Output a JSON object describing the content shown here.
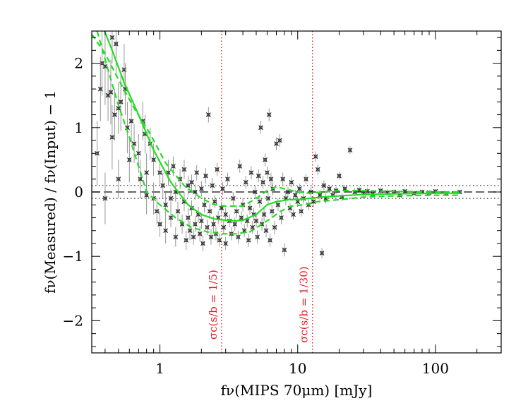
{
  "chart_data": {
    "type": "scatter",
    "title": "",
    "xlabel": "fν(MIPS 70μm) [mJy]",
    "ylabel": "fν(Measured) / fν(Input) − 1",
    "xscale": "log",
    "xlim": [
      0.32,
      300
    ],
    "ylim": [
      -2.5,
      2.5
    ],
    "x_ticks": [
      1,
      10,
      100
    ],
    "x_tick_labels": [
      "1",
      "10",
      "100"
    ],
    "y_ticks": [
      -2,
      -1,
      0,
      1,
      2
    ],
    "y_tick_labels": [
      "−2",
      "−1",
      "0",
      "1",
      "2"
    ],
    "grid": false,
    "colors": {
      "points": "#2b2b2b",
      "fit": "#22dd22",
      "vlines": "#e41a1c",
      "reference": "#333333"
    },
    "reference_lines": [
      {
        "y": 0,
        "style": "dashed"
      },
      {
        "y": 0.1,
        "style": "dotted"
      },
      {
        "y": -0.1,
        "style": "dotted"
      }
    ],
    "vertical_lines": [
      {
        "x": 2.8,
        "label": "σc(s/b = 1/5)"
      },
      {
        "x": 12.8,
        "label": "σc(s/b = 1/30)"
      }
    ],
    "series": [
      {
        "kind": "fit_median",
        "style": "solid",
        "x": [
          0.38,
          0.45,
          0.55,
          0.7,
          0.9,
          1.2,
          1.6,
          2.0,
          2.5,
          3.0,
          3.5,
          4.0,
          5.0,
          6.0,
          7.0,
          8.5,
          10,
          12,
          15,
          20,
          30,
          50,
          100,
          150
        ],
        "y": [
          2.6,
          2.2,
          1.7,
          1.2,
          0.65,
          0.15,
          -0.2,
          -0.35,
          -0.42,
          -0.44,
          -0.45,
          -0.44,
          -0.35,
          -0.2,
          -0.15,
          -0.12,
          -0.12,
          -0.1,
          -0.08,
          -0.06,
          -0.04,
          -0.03,
          -0.02,
          -0.02
        ]
      },
      {
        "kind": "fit_upper",
        "style": "dashed",
        "x": [
          0.32,
          0.4,
          0.5,
          0.65,
          0.85,
          1.1,
          1.5,
          2.0,
          2.5,
          3.0,
          4.0,
          5.0,
          6.0,
          7.0,
          8.0,
          10,
          12,
          15,
          20,
          30,
          50,
          100,
          150
        ],
        "y": [
          2.45,
          2.15,
          1.75,
          1.3,
          0.9,
          0.45,
          0.1,
          -0.1,
          -0.2,
          -0.22,
          -0.22,
          -0.1,
          0.02,
          0.08,
          0.05,
          0.0,
          -0.02,
          0.0,
          0.02,
          0.02,
          0.01,
          0.0,
          0.0
        ]
      },
      {
        "kind": "fit_lower",
        "style": "dashed",
        "x": [
          0.35,
          0.42,
          0.5,
          0.6,
          0.7,
          0.8,
          1.0,
          1.3,
          1.7,
          2.2,
          2.8,
          3.5,
          4.5,
          5.5,
          6.5,
          7.5,
          9,
          11,
          14,
          20,
          30,
          50,
          100,
          150
        ],
        "y": [
          2.5,
          1.9,
          1.35,
          0.85,
          0.4,
          0.0,
          -0.2,
          -0.4,
          -0.55,
          -0.62,
          -0.65,
          -0.65,
          -0.62,
          -0.5,
          -0.4,
          -0.3,
          -0.22,
          -0.2,
          -0.15,
          -0.12,
          -0.08,
          -0.06,
          -0.05,
          -0.05
        ]
      },
      {
        "kind": "measurements",
        "points": [
          [
            0.38,
            2.0,
            0.5
          ],
          [
            0.4,
            1.95,
            0.6
          ],
          [
            0.42,
            1.5,
            0.4
          ],
          [
            0.44,
            1.55,
            0.5
          ],
          [
            0.45,
            0.85,
            0.5
          ],
          [
            0.47,
            1.2,
            0.4
          ],
          [
            0.48,
            2.3,
            0.5
          ],
          [
            0.5,
            1.3,
            0.4
          ],
          [
            0.52,
            1.4,
            0.45
          ],
          [
            0.55,
            1.9,
            0.4
          ],
          [
            0.56,
            1.6,
            0.4
          ],
          [
            0.58,
            1.0,
            0.4
          ],
          [
            0.6,
            0.5,
            0.35
          ],
          [
            0.62,
            1.1,
            0.35
          ],
          [
            0.65,
            0.75,
            0.3
          ],
          [
            0.35,
            0.6,
            0.5
          ],
          [
            0.37,
            1.6,
            0.5
          ],
          [
            0.4,
            -0.1,
            0.4
          ],
          [
            0.45,
            2.4,
            0.4
          ],
          [
            0.5,
            0.2,
            0.3
          ],
          [
            0.7,
            0.6,
            0.3
          ],
          [
            0.72,
            0.2,
            0.3
          ],
          [
            0.75,
            1.1,
            0.3
          ],
          [
            0.78,
            0.9,
            0.3
          ],
          [
            0.8,
            0.3,
            0.3
          ],
          [
            0.8,
            -0.05,
            0.3
          ],
          [
            0.85,
            0.75,
            0.25
          ],
          [
            0.9,
            -0.1,
            0.25
          ],
          [
            0.9,
            0.5,
            0.25
          ],
          [
            0.95,
            -0.3,
            0.2
          ],
          [
            1.0,
            0.3,
            0.2
          ],
          [
            1.0,
            -0.5,
            0.2
          ],
          [
            1.05,
            0.1,
            0.2
          ],
          [
            1.1,
            -0.2,
            0.2
          ],
          [
            1.1,
            -0.6,
            0.2
          ],
          [
            1.15,
            0.3,
            0.2
          ],
          [
            1.2,
            -0.1,
            0.15
          ],
          [
            1.2,
            -0.4,
            0.15
          ],
          [
            1.25,
            0.4,
            0.15
          ],
          [
            1.3,
            -0.7,
            0.15
          ],
          [
            1.3,
            0.0,
            0.15
          ],
          [
            1.35,
            -0.3,
            0.15
          ],
          [
            1.4,
            0.2,
            0.15
          ],
          [
            1.45,
            -0.5,
            0.15
          ],
          [
            1.5,
            0.35,
            0.15
          ],
          [
            1.5,
            -0.15,
            0.15
          ],
          [
            1.55,
            -0.75,
            0.15
          ],
          [
            1.6,
            0.1,
            0.15
          ],
          [
            1.6,
            -0.4,
            0.15
          ],
          [
            1.65,
            -0.6,
            0.15
          ],
          [
            1.7,
            0.15,
            0.12
          ],
          [
            1.7,
            -0.25,
            0.12
          ],
          [
            1.75,
            -0.7,
            0.12
          ],
          [
            1.8,
            0.0,
            0.12
          ],
          [
            1.8,
            -0.5,
            0.12
          ],
          [
            1.85,
            0.3,
            0.12
          ],
          [
            1.9,
            -0.35,
            0.12
          ],
          [
            1.95,
            -0.65,
            0.12
          ],
          [
            2.0,
            0.05,
            0.12
          ],
          [
            2.0,
            -0.45,
            0.12
          ],
          [
            2.05,
            -0.8,
            0.12
          ],
          [
            2.1,
            -0.2,
            0.12
          ],
          [
            2.15,
            0.25,
            0.12
          ],
          [
            2.2,
            -0.55,
            0.12
          ],
          [
            2.25,
            1.2,
            0.12
          ],
          [
            2.3,
            -0.3,
            0.12
          ],
          [
            2.35,
            -0.7,
            0.12
          ],
          [
            2.4,
            0.1,
            0.12
          ],
          [
            2.45,
            -0.5,
            0.12
          ],
          [
            2.5,
            -0.15,
            0.1
          ],
          [
            2.55,
            -0.65,
            0.1
          ],
          [
            2.6,
            0.35,
            0.1
          ],
          [
            2.65,
            -0.4,
            0.1
          ],
          [
            2.7,
            -0.75,
            0.1
          ],
          [
            2.8,
            -0.25,
            0.1
          ],
          [
            2.85,
            0.05,
            0.1
          ],
          [
            2.9,
            -0.55,
            0.1
          ],
          [
            3.0,
            -0.35,
            0.1
          ],
          [
            3.0,
            -0.8,
            0.1
          ],
          [
            3.1,
            0.2,
            0.1
          ],
          [
            3.2,
            -0.45,
            0.1
          ],
          [
            3.3,
            -0.65,
            0.1
          ],
          [
            3.4,
            -0.1,
            0.1
          ],
          [
            3.5,
            -0.5,
            0.1
          ],
          [
            3.6,
            -0.3,
            0.1
          ],
          [
            3.7,
            -0.7,
            0.1
          ],
          [
            3.8,
            0.4,
            0.1
          ],
          [
            3.9,
            -0.4,
            0.1
          ],
          [
            4.0,
            -0.2,
            0.1
          ],
          [
            4.1,
            -0.6,
            0.1
          ],
          [
            4.2,
            0.15,
            0.1
          ],
          [
            4.3,
            -0.45,
            0.1
          ],
          [
            4.4,
            -0.75,
            0.1
          ],
          [
            4.5,
            -0.25,
            0.1
          ],
          [
            4.6,
            0.3,
            0.1
          ],
          [
            4.7,
            -0.55,
            0.1
          ],
          [
            4.8,
            -0.35,
            0.1
          ],
          [
            4.9,
            0.0,
            0.1
          ],
          [
            5.0,
            -0.45,
            0.1
          ],
          [
            5.1,
            -0.7,
            0.1
          ],
          [
            5.2,
            0.25,
            0.1
          ],
          [
            5.3,
            -0.15,
            0.1
          ],
          [
            5.4,
            1.0,
            0.1
          ],
          [
            5.5,
            -0.5,
            0.1
          ],
          [
            5.6,
            0.15,
            0.1
          ],
          [
            5.7,
            -0.35,
            0.1
          ],
          [
            5.8,
            0.5,
            0.1
          ],
          [
            5.9,
            -0.6,
            0.1
          ],
          [
            6.0,
            0.3,
            0.1
          ],
          [
            6.1,
            -0.1,
            0.1
          ],
          [
            6.2,
            1.2,
            0.1
          ],
          [
            6.3,
            -0.75,
            0.1
          ],
          [
            6.4,
            0.2,
            0.1
          ],
          [
            6.5,
            -0.3,
            0.1
          ],
          [
            6.6,
            0.05,
            0.1
          ],
          [
            6.8,
            -0.55,
            0.1
          ],
          [
            7.0,
            0.75,
            0.1
          ],
          [
            7.2,
            -0.2,
            0.1
          ],
          [
            7.4,
            0.8,
            0.1
          ],
          [
            7.6,
            -0.4,
            0.1
          ],
          [
            7.8,
            0.2,
            0.1
          ],
          [
            8.0,
            -0.9,
            0.1
          ],
          [
            8.2,
            -0.1,
            0.1
          ],
          [
            8.5,
            0.0,
            0.08
          ],
          [
            8.8,
            -0.25,
            0.08
          ],
          [
            9.0,
            0.15,
            0.08
          ],
          [
            9.3,
            -0.35,
            0.08
          ],
          [
            9.6,
            -0.05,
            0.08
          ],
          [
            10.0,
            -0.15,
            0.08
          ],
          [
            10.3,
            0.05,
            0.08
          ],
          [
            10.6,
            -0.3,
            0.08
          ],
          [
            11.0,
            -0.1,
            0.08
          ],
          [
            11.5,
            0.2,
            0.08
          ],
          [
            12.0,
            -0.2,
            0.08
          ],
          [
            12.5,
            0.0,
            0.08
          ],
          [
            13.0,
            -0.15,
            0.08
          ],
          [
            13.5,
            0.55,
            0.08
          ],
          [
            14.0,
            0.35,
            0.08
          ],
          [
            14.5,
            -0.05,
            0.08
          ],
          [
            15.0,
            -0.95,
            0.08
          ],
          [
            15.5,
            0.1,
            0.08
          ],
          [
            16.0,
            -0.1,
            0.08
          ],
          [
            17.0,
            0.05,
            0.06
          ],
          [
            18.0,
            -0.05,
            0.06
          ],
          [
            19.0,
            0.02,
            0.06
          ],
          [
            20.0,
            0.25,
            0.06
          ],
          [
            21.0,
            -0.08,
            0.06
          ],
          [
            22.0,
            0.05,
            0.06
          ],
          [
            24.0,
            0.65,
            0.06
          ],
          [
            26.0,
            0.0,
            0.06
          ],
          [
            28.0,
            0.03,
            0.05
          ],
          [
            30.0,
            -0.02,
            0.05
          ],
          [
            32.0,
            0.01,
            0.05
          ],
          [
            35.0,
            -0.03,
            0.05
          ],
          [
            40.0,
            0.02,
            0.05
          ],
          [
            45.0,
            -0.01,
            0.05
          ],
          [
            50.0,
            0.0,
            0.04
          ],
          [
            55.0,
            -0.05,
            0.04
          ],
          [
            60.0,
            0.01,
            0.04
          ],
          [
            70.0,
            -0.02,
            0.04
          ],
          [
            80.0,
            0.0,
            0.04
          ],
          [
            90.0,
            -0.01,
            0.04
          ],
          [
            100.0,
            0.01,
            0.03
          ],
          [
            120.0,
            -0.02,
            0.03
          ],
          [
            150.0,
            0.0,
            0.03
          ]
        ]
      }
    ]
  }
}
